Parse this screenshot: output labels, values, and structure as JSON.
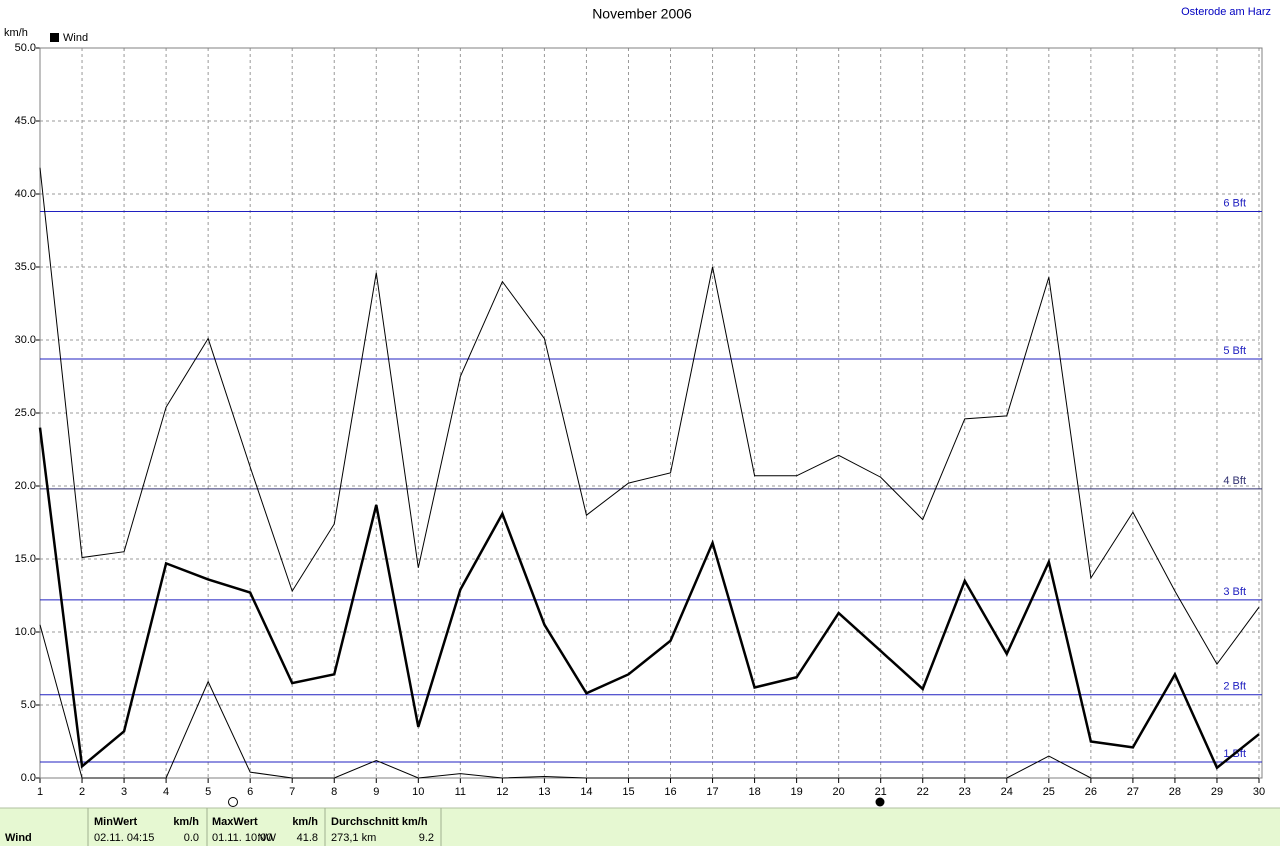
{
  "chart_data": {
    "type": "line",
    "title": "November 2006",
    "location": "Osterode am Harz",
    "y_label": "km/h",
    "x": [
      1,
      2,
      3,
      4,
      5,
      6,
      7,
      8,
      9,
      10,
      11,
      12,
      13,
      14,
      15,
      16,
      17,
      18,
      19,
      20,
      21,
      22,
      23,
      24,
      25,
      26,
      27,
      28,
      29,
      30
    ],
    "xlim": [
      1,
      30
    ],
    "xticks": [
      1,
      2,
      3,
      4,
      5,
      6,
      7,
      8,
      9,
      10,
      11,
      12,
      13,
      14,
      15,
      16,
      17,
      18,
      19,
      20,
      21,
      22,
      23,
      24,
      25,
      26,
      27,
      28,
      29,
      30
    ],
    "ylim": [
      0,
      50
    ],
    "yticks": [
      {
        "value": 0,
        "label": "0.0"
      },
      {
        "value": 5,
        "label": "5.0"
      },
      {
        "value": 10,
        "label": "10.0"
      },
      {
        "value": 15,
        "label": "15.0"
      },
      {
        "value": 20,
        "label": "20.0"
      },
      {
        "value": 25,
        "label": "25.0"
      },
      {
        "value": 30,
        "label": "30.0"
      },
      {
        "value": 35,
        "label": "35.0"
      },
      {
        "value": 40,
        "label": "40.0"
      },
      {
        "value": 45,
        "label": "45.0"
      },
      {
        "value": 50,
        "label": "50.0"
      }
    ],
    "grid": true,
    "legend": "top-left",
    "series": [
      {
        "name": "Wind",
        "color": "#000000",
        "width": 2.5,
        "values": [
          24.0,
          0.8,
          3.2,
          14.7,
          13.6,
          12.7,
          6.5,
          7.1,
          18.7,
          3.5,
          12.9,
          18.1,
          10.5,
          5.8,
          7.1,
          9.4,
          16.1,
          6.2,
          6.9,
          11.3,
          8.7,
          6.1,
          13.5,
          8.5,
          14.8,
          2.5,
          2.1,
          7.1,
          0.7,
          3.0
        ]
      },
      {
        "color": "#000000",
        "width": 1,
        "values": [
          41.8,
          15.1,
          15.5,
          25.4,
          30.1,
          21.3,
          12.8,
          17.4,
          34.6,
          14.4,
          27.5,
          34.0,
          30.1,
          18.0,
          20.2,
          20.9,
          35.0,
          20.7,
          20.7,
          22.1,
          20.6,
          17.7,
          24.6,
          24.8,
          34.3,
          13.7,
          18.2,
          12.8,
          7.8,
          11.7
        ]
      },
      {
        "color": "#000000",
        "width": 1,
        "values": [
          10.5,
          0.0,
          0.0,
          0.0,
          6.6,
          0.4,
          0.0,
          0.0,
          1.2,
          0.0,
          0.3,
          0.0,
          0.1,
          0.0,
          0.0,
          0.0,
          0.0,
          0.0,
          0.0,
          0.0,
          0.0,
          0.0,
          0.0,
          0.0,
          1.5,
          0.0,
          0.0,
          0.0,
          0.0,
          0.0
        ]
      }
    ],
    "reference_lines": [
      {
        "label": "6 Bft",
        "value": 38.8,
        "color": "#2020c0"
      },
      {
        "label": "5 Bft",
        "value": 28.7,
        "color": "#2020c0"
      },
      {
        "label": "4 Bft",
        "value": 19.8,
        "color": "#303070"
      },
      {
        "label": "3 Bft",
        "value": 12.2,
        "color": "#2020c0"
      },
      {
        "label": "2 Bft",
        "value": 5.7,
        "color": "#2020c0"
      },
      {
        "label": "1 Bft",
        "value": 1.1,
        "color": "#2020c0"
      }
    ]
  },
  "summary": {
    "label": "Wind",
    "min": {
      "title": "MinWert",
      "unit": "km/h",
      "time": "02.11.  04:15",
      "value": "0.0"
    },
    "max": {
      "title": "MaxWert",
      "unit": "km/h",
      "time": "01.11.  10:00",
      "dir": "NW",
      "value": "41.8"
    },
    "avg": {
      "title": "Durchschnitt km/h",
      "distance": "273,1 km",
      "value": "9.2"
    }
  }
}
